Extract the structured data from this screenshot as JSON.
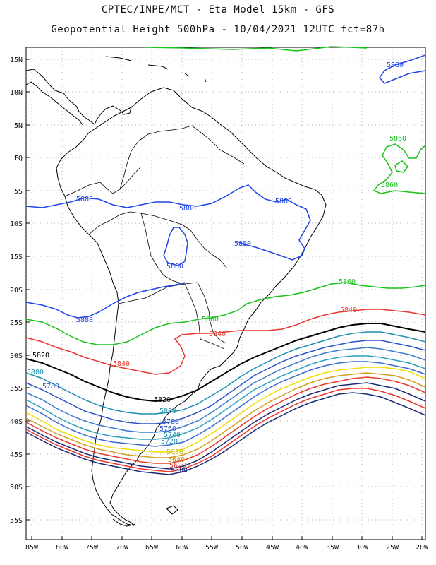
{
  "title": {
    "line1": "CPTEC/INPE/MCT -  Eta Model 15km - GFS",
    "line2": "Geopotential Height 500hPa - 10/04/2021 12UTC fct=87h"
  },
  "axes": {
    "lat_labels": [
      "15N",
      "10N",
      "5N",
      "EQ",
      "5S",
      "10S",
      "15S",
      "20S",
      "25S",
      "30S",
      "35S",
      "40S",
      "45S",
      "50S",
      "55S"
    ],
    "lon_labels": [
      "85W",
      "80W",
      "75W",
      "70W",
      "65W",
      "60W",
      "55W",
      "50W",
      "45W",
      "40W",
      "35W",
      "30W",
      "25W",
      "20W"
    ]
  },
  "contour_labels": [
    {
      "text": "5880",
      "color": "#1f45e8"
    },
    {
      "text": "5880",
      "color": "#1f45e8"
    },
    {
      "text": "5880",
      "color": "#1f45e8"
    },
    {
      "text": "5880",
      "color": "#1f45e8"
    },
    {
      "text": "5880",
      "color": "#1f45e8"
    },
    {
      "text": "5880",
      "color": "#1f45e8"
    },
    {
      "text": "5880",
      "color": "#1f45e8"
    },
    {
      "text": "5860",
      "color": "#19c219"
    },
    {
      "text": "5860",
      "color": "#19c219"
    },
    {
      "text": "5860",
      "color": "#19c219"
    },
    {
      "text": "5860",
      "color": "#19c219"
    },
    {
      "text": "5840",
      "color": "#e8382e"
    },
    {
      "text": "5840",
      "color": "#e8382e"
    },
    {
      "text": "5840",
      "color": "#e8382e"
    },
    {
      "text": "5820",
      "color": "#000000"
    },
    {
      "text": "5820",
      "color": "#000000"
    },
    {
      "text": "5800",
      "color": "#1f8fb0"
    },
    {
      "text": "5800",
      "color": "#1f8fb0"
    },
    {
      "text": "5780",
      "color": "#2a55c8"
    },
    {
      "text": "5780",
      "color": "#2a55c8"
    },
    {
      "text": "5760",
      "color": "#2a55c8"
    },
    {
      "text": "5740",
      "color": "#1f8fb0"
    },
    {
      "text": "5720",
      "color": "#2a8fb0"
    },
    {
      "text": "5680",
      "color": "#c9b800"
    },
    {
      "text": "5640",
      "color": "#c98a00"
    },
    {
      "text": "5620",
      "color": "#e8382e"
    },
    {
      "text": "5600",
      "color": "#1a2a78"
    }
  ],
  "colors": {
    "c5880": "#1f45e8",
    "c5860": "#19c219",
    "c5840": "#e8382e",
    "c5820": "#000000",
    "c5800": "#1f8fb0",
    "c5780": "#2a55c8",
    "c5760": "#3a7ad0",
    "c5740": "#2aa0c0",
    "c5720": "#3a6ad0",
    "c5700": "#f0e000",
    "c5680": "#d4a020",
    "c5660": "#e83828",
    "c5640": "#1a2a78",
    "coast": "#000000",
    "grid": "#999999"
  }
}
